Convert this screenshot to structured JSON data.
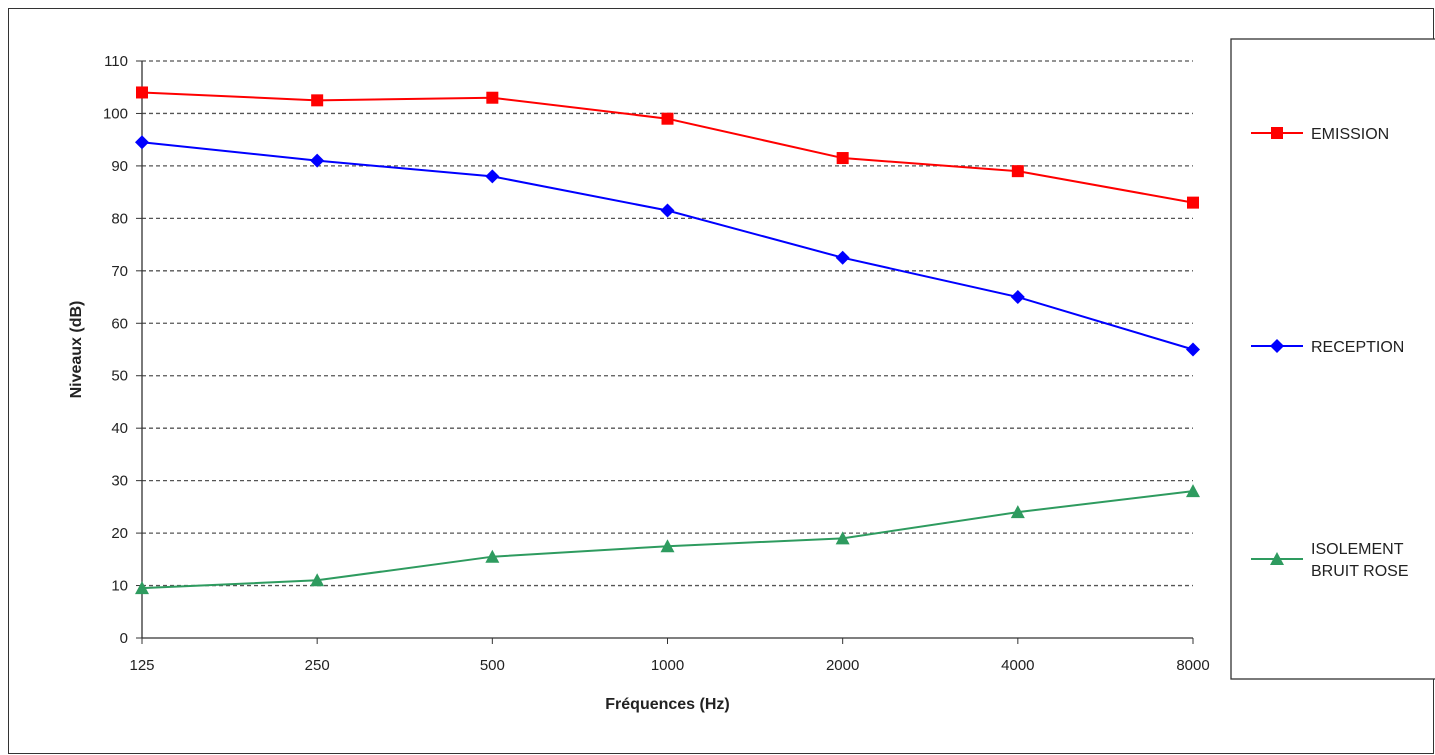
{
  "chart_data": {
    "type": "line",
    "categories": [
      "125",
      "250",
      "500",
      "1000",
      "2000",
      "4000",
      "8000"
    ],
    "xlabel": "Fréquences (Hz)",
    "ylabel": "Niveaux (dB)",
    "ylim": [
      0,
      110
    ],
    "yticks": [
      "0",
      "10",
      "20",
      "30",
      "40",
      "50",
      "60",
      "70",
      "80",
      "90",
      "100",
      "110"
    ],
    "grid": "horizontal-dashed",
    "legend_position": "right",
    "series": [
      {
        "name": "EMISSION",
        "name_lines": [
          "EMISSION"
        ],
        "values": [
          104,
          102.5,
          103,
          99,
          91.5,
          89,
          83
        ],
        "color": "#ff0000",
        "marker": "square"
      },
      {
        "name": "RECEPTION",
        "name_lines": [
          "RECEPTION"
        ],
        "values": [
          94.5,
          91,
          88,
          81.5,
          72.5,
          65,
          55
        ],
        "color": "#0000ff",
        "marker": "diamond"
      },
      {
        "name": "ISOLEMENT BRUIT ROSE",
        "name_lines": [
          "ISOLEMENT",
          "BRUIT ROSE"
        ],
        "values": [
          9.5,
          11,
          15.5,
          17.5,
          19,
          24,
          28
        ],
        "color": "#2e9b5f",
        "marker": "triangle"
      }
    ]
  }
}
